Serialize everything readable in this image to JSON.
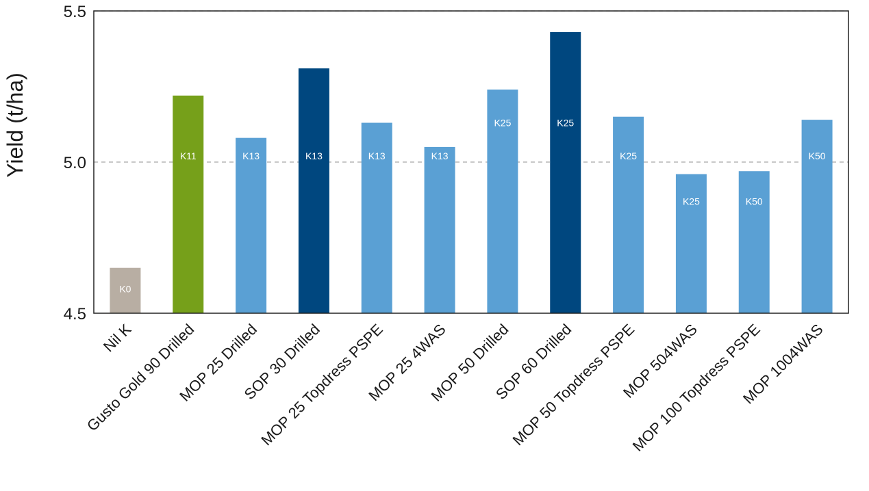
{
  "chart_data": {
    "type": "bar",
    "title": "",
    "xlabel": "",
    "ylabel": "Yield (t/ha)",
    "ylim": [
      4.5,
      5.5
    ],
    "yticks": [
      "4.5",
      "5.0",
      "5.5"
    ],
    "grid": true,
    "categories": [
      "Nil K",
      "Gusto Gold 90 Drilled",
      "MOP 25 Drilled",
      "SOP 30 Drilled",
      "MOP 25 Topdress PSPE",
      "MOP 25 4WAS",
      "MOP 50 Drilled",
      "SOP 60 Drilled",
      "MOP 50 Topdress PSPE",
      "MOP 504WAS",
      "MOP 100 Topdress PSPE",
      "MOP 1004WAS"
    ],
    "values": [
      4.65,
      5.22,
      5.08,
      5.31,
      5.13,
      5.05,
      5.24,
      5.43,
      5.15,
      4.96,
      4.97,
      5.14
    ],
    "bar_labels": [
      "K0",
      "K11",
      "K13",
      "K13",
      "K13",
      "K13",
      "K25",
      "K25",
      "K25",
      "K25",
      "K50",
      "K50"
    ],
    "bar_colors": [
      "#b8aea3",
      "#76a01a",
      "#5aa0d4",
      "#00477f",
      "#5aa0d4",
      "#5aa0d4",
      "#5aa0d4",
      "#00477f",
      "#5aa0d4",
      "#5aa0d4",
      "#5aa0d4",
      "#5aa0d4"
    ]
  }
}
